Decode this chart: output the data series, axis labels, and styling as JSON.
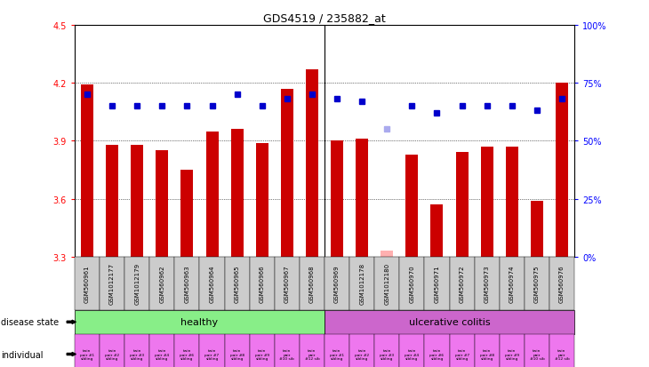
{
  "title": "GDS4519 / 235882_at",
  "samples": [
    "GSM560961",
    "GSM1012177",
    "GSM1012179",
    "GSM560962",
    "GSM560963",
    "GSM560964",
    "GSM560965",
    "GSM560966",
    "GSM560967",
    "GSM560968",
    "GSM560969",
    "GSM1012178",
    "GSM1012180",
    "GSM560970",
    "GSM560971",
    "GSM560972",
    "GSM560973",
    "GSM560974",
    "GSM560975",
    "GSM560976"
  ],
  "bar_values": [
    4.19,
    3.88,
    3.88,
    3.85,
    3.75,
    3.95,
    3.96,
    3.89,
    4.17,
    4.27,
    3.9,
    3.91,
    3.33,
    3.83,
    3.57,
    3.84,
    3.87,
    3.87,
    3.59,
    4.2
  ],
  "dot_rank_pct": [
    70,
    65,
    65,
    65,
    65,
    65,
    70,
    65,
    68,
    70,
    68,
    67,
    55,
    65,
    62,
    65,
    65,
    65,
    63,
    68
  ],
  "bar_absent": [
    false,
    false,
    false,
    false,
    false,
    false,
    false,
    false,
    false,
    false,
    false,
    false,
    true,
    false,
    false,
    false,
    false,
    false,
    false,
    false
  ],
  "dot_absent": [
    false,
    false,
    false,
    false,
    false,
    false,
    false,
    false,
    false,
    false,
    false,
    false,
    true,
    false,
    false,
    false,
    false,
    false,
    false,
    false
  ],
  "individual_labels": [
    "twin\npair #1\nsibling",
    "twin\npair #2\nsibling",
    "twin\npair #3\nsibling",
    "twin\npair #4\nsibling",
    "twin\npair #6\nsibling",
    "twin\npair #7\nsibling",
    "twin\npair #8\nsibling",
    "twin\npair #9\nsibling",
    "twin\npair\n#10 sib",
    "twin\npair\n#12 sib",
    "twin\npair #1\nsibling",
    "twin\npair #2\nsibling",
    "twin\npair #3\nsibling",
    "twin\npair #4\nsibling",
    "twin\npair #6\nsibling",
    "twin\npair #7\nsibling",
    "twin\npair #8\nsibling",
    "twin\npair #9\nsibling",
    "twin\npair\n#10 sib",
    "twin\npair\n#12 sib"
  ],
  "ylim_left": [
    3.3,
    4.5
  ],
  "ylim_right": [
    0,
    100
  ],
  "yticks_left": [
    3.3,
    3.6,
    3.9,
    4.2,
    4.5
  ],
  "yticks_right": [
    0,
    25,
    50,
    75,
    100
  ],
  "bar_color": "#cc0000",
  "bar_absent_color": "#ffb0b0",
  "dot_color": "#0000cc",
  "dot_absent_color": "#aaaaee",
  "healthy_color": "#88ee88",
  "uc_color": "#cc66cc",
  "individual_color": "#ee77ee",
  "bg_color": "#cccccc",
  "healthy_split": 10,
  "n_samples": 20
}
